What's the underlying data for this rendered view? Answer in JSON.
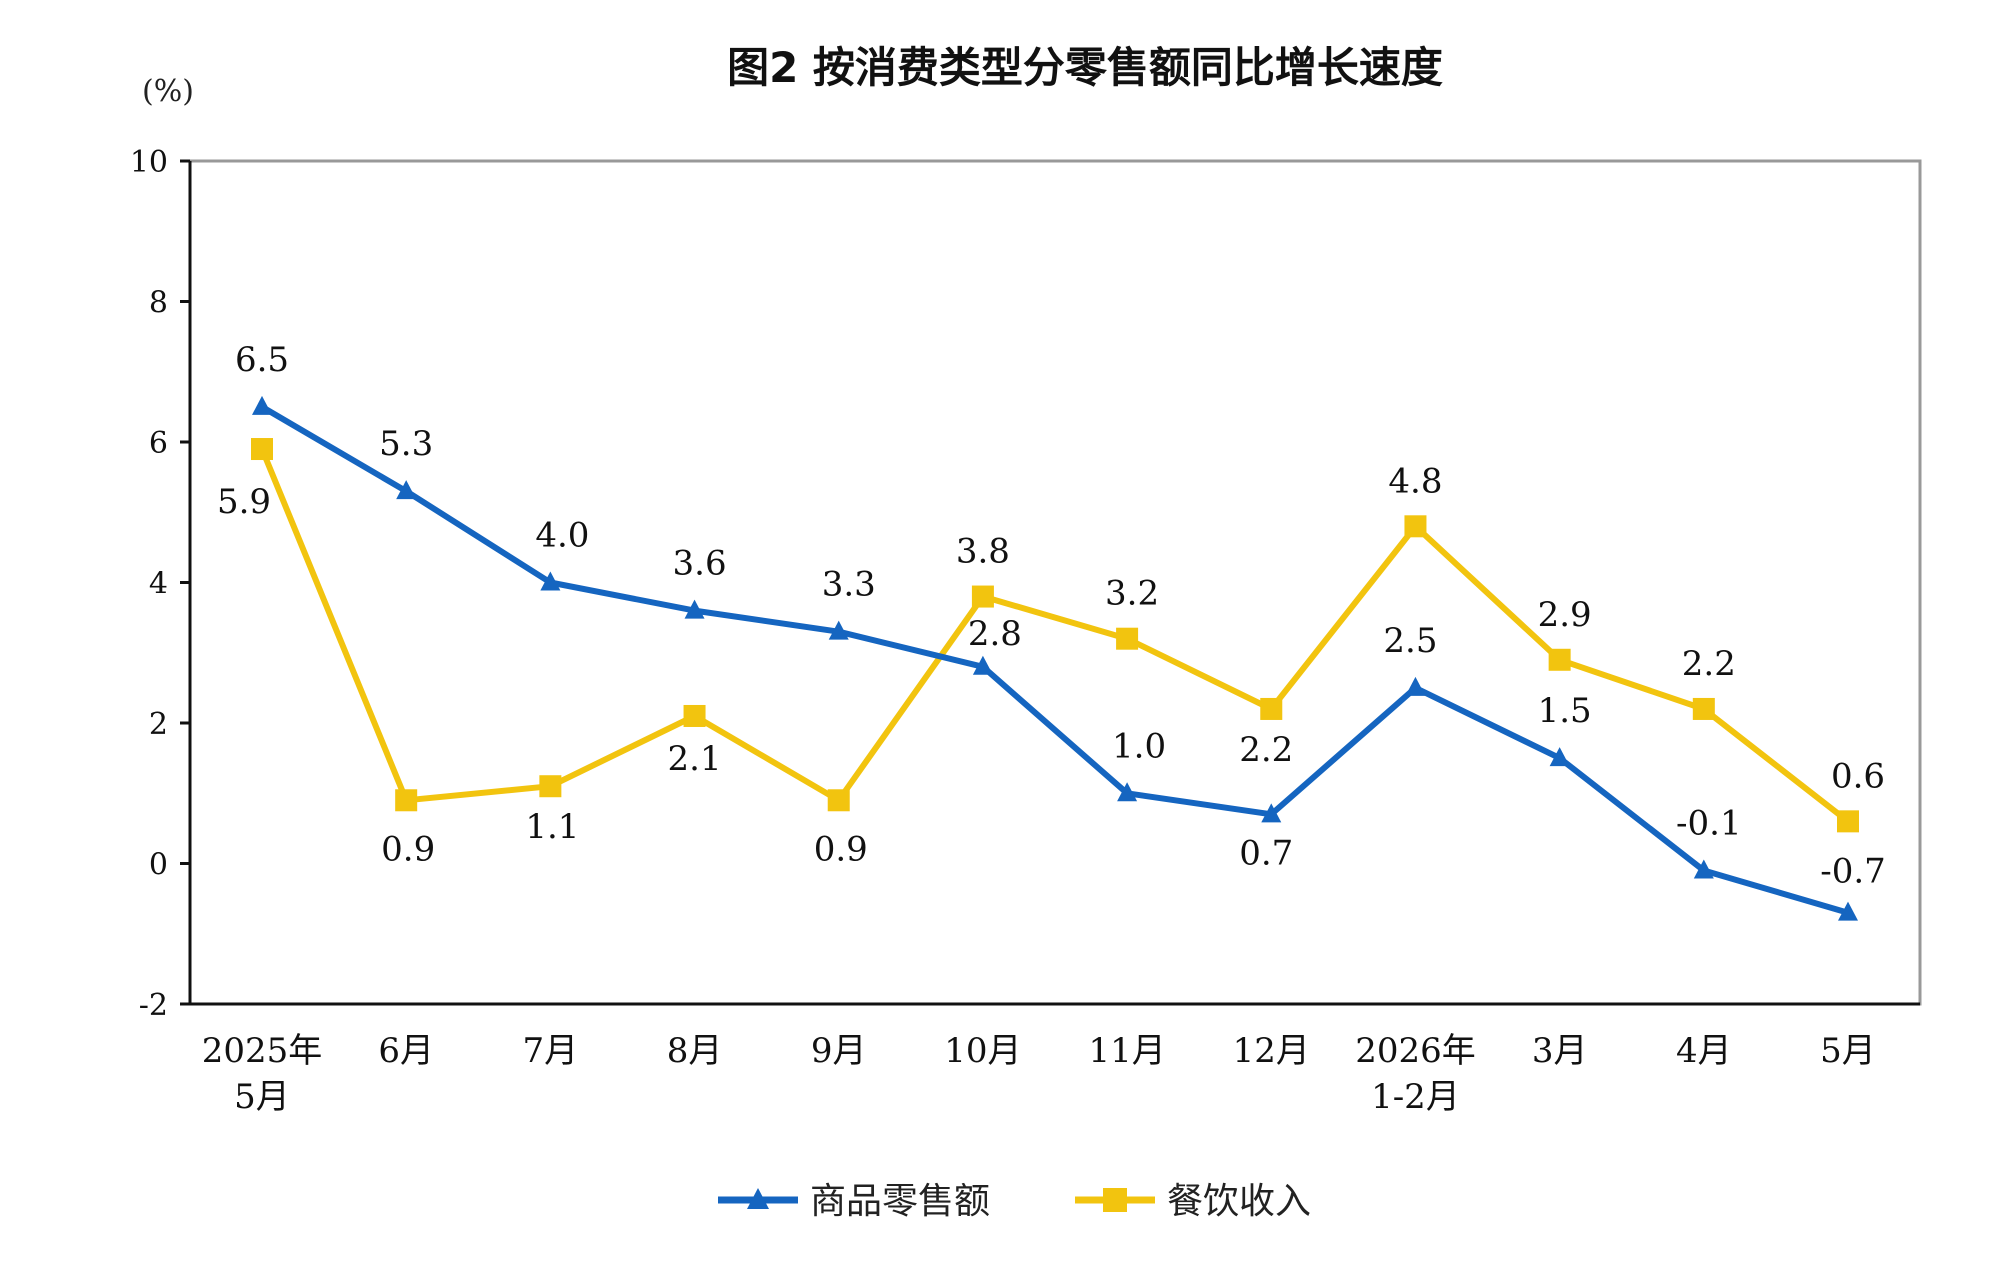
{
  "chart_data": {
    "type": "line",
    "title": "图2  按消费类型分零售额同比增长速度",
    "unit": "(%)",
    "ylim": [
      -2,
      10
    ],
    "yticks": [
      -2,
      0,
      2,
      4,
      6,
      8,
      10
    ],
    "categories": [
      [
        "2025年",
        "5月"
      ],
      [
        "6月"
      ],
      [
        "7月"
      ],
      [
        "8月"
      ],
      [
        "9月"
      ],
      [
        "10月"
      ],
      [
        "11月"
      ],
      [
        "12月"
      ],
      [
        "2026年",
        "1-2月"
      ],
      [
        "3月"
      ],
      [
        "4月"
      ],
      [
        "5月"
      ]
    ],
    "series": [
      {
        "name": "商品零售额",
        "color": "#1565c0",
        "marker": "triangle",
        "values": [
          6.5,
          5.3,
          4.0,
          3.6,
          3.3,
          2.8,
          1.0,
          0.7,
          2.5,
          1.5,
          -0.1,
          -0.7
        ],
        "labels": [
          "6.5",
          "5.3",
          "4.0",
          "3.6",
          "3.3",
          "2.8",
          "1.0",
          "0.7",
          "2.5",
          "1.5",
          "-0.1",
          "-0.7"
        ]
      },
      {
        "name": "餐饮收入",
        "color": "#f2c40f",
        "marker": "square",
        "values": [
          5.9,
          0.9,
          1.1,
          2.1,
          0.9,
          3.8,
          3.2,
          2.2,
          4.8,
          2.9,
          2.2,
          0.6
        ],
        "labels": [
          "5.9",
          "0.9",
          "1.1",
          "2.1",
          "0.9",
          "3.8",
          "3.2",
          "2.2",
          "4.8",
          "2.9",
          "2.2",
          "0.6"
        ]
      }
    ],
    "grid": false,
    "legend_position": "bottom"
  }
}
